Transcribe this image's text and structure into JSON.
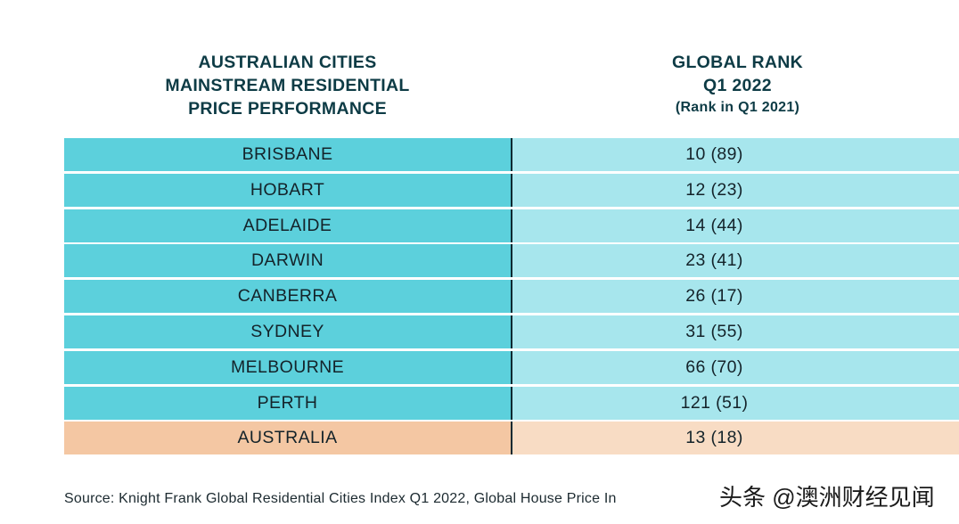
{
  "chart_data": {
    "type": "table",
    "title": "AUSTRALIAN CITIES MAINSTREAM RESIDENTIAL PRICE PERFORMANCE",
    "columns": {
      "city_header": [
        "AUSTRALIAN CITIES",
        "MAINSTREAM RESIDENTIAL",
        "PRICE PERFORMANCE"
      ],
      "rank_header": [
        "GLOBAL RANK",
        "Q1 2022"
      ],
      "rank_subheader": "(Rank in Q1 2021)"
    },
    "rows": [
      {
        "city": "BRISBANE",
        "rank": "10 (89)",
        "rank_q1_2022": 10,
        "rank_q1_2021": 89
      },
      {
        "city": "HOBART",
        "rank": "12 (23)",
        "rank_q1_2022": 12,
        "rank_q1_2021": 23
      },
      {
        "city": "ADELAIDE",
        "rank": "14 (44)",
        "rank_q1_2022": 14,
        "rank_q1_2021": 44
      },
      {
        "city": "DARWIN",
        "rank": "23 (41)",
        "rank_q1_2022": 23,
        "rank_q1_2021": 41
      },
      {
        "city": "CANBERRA",
        "rank": "26 (17)",
        "rank_q1_2022": 26,
        "rank_q1_2021": 17
      },
      {
        "city": "SYDNEY",
        "rank": "31 (55)",
        "rank_q1_2022": 31,
        "rank_q1_2021": 55
      },
      {
        "city": "MELBOURNE",
        "rank": "66 (70)",
        "rank_q1_2022": 66,
        "rank_q1_2021": 70
      },
      {
        "city": "PERTH",
        "rank": "121 (51)",
        "rank_q1_2022": 121,
        "rank_q1_2021": 51
      },
      {
        "city": "AUSTRALIA",
        "rank": "13 (18)",
        "rank_q1_2022": 13,
        "rank_q1_2021": 18,
        "is_total": true
      }
    ],
    "source": "Source: Knight Frank Global Residential Cities Index Q1 2022, Global House Price In"
  },
  "watermark": "头条 @澳洲财经见闻",
  "colors": {
    "header_text": "#0d3b45",
    "city_cell": "#5cd0dc",
    "rank_cell": "#a7e6ed",
    "total_city_cell": "#f4c7a3",
    "total_rank_cell": "#f8dcc4",
    "divider": "#0c2a32"
  }
}
